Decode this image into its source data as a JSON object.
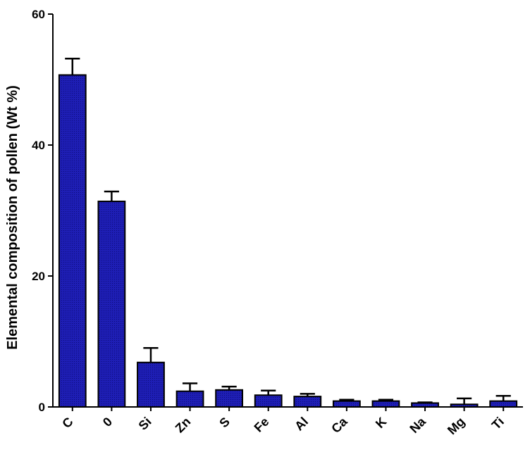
{
  "chart_data": {
    "type": "bar",
    "title": "",
    "xlabel": "",
    "ylabel": "Elemental composition of pollen (Wt %)",
    "ylim": [
      0,
      60
    ],
    "yticks": [
      0,
      20,
      40,
      60
    ],
    "grid": false,
    "bar_color": "#1a1ab0",
    "categories": [
      "C",
      "0",
      "Si",
      "Zn",
      "S",
      "Fe",
      "Al",
      "Ca",
      "K",
      "Na",
      "Mg",
      "Ti"
    ],
    "series": [
      {
        "values": [
          50.7,
          31.4,
          6.8,
          2.4,
          2.6,
          1.8,
          1.6,
          0.9,
          0.9,
          0.6,
          0.4,
          0.9
        ],
        "errors": [
          2.5,
          1.5,
          2.2,
          1.2,
          0.5,
          0.7,
          0.4,
          0.2,
          0.2,
          0.1,
          0.9,
          0.8
        ]
      }
    ]
  }
}
